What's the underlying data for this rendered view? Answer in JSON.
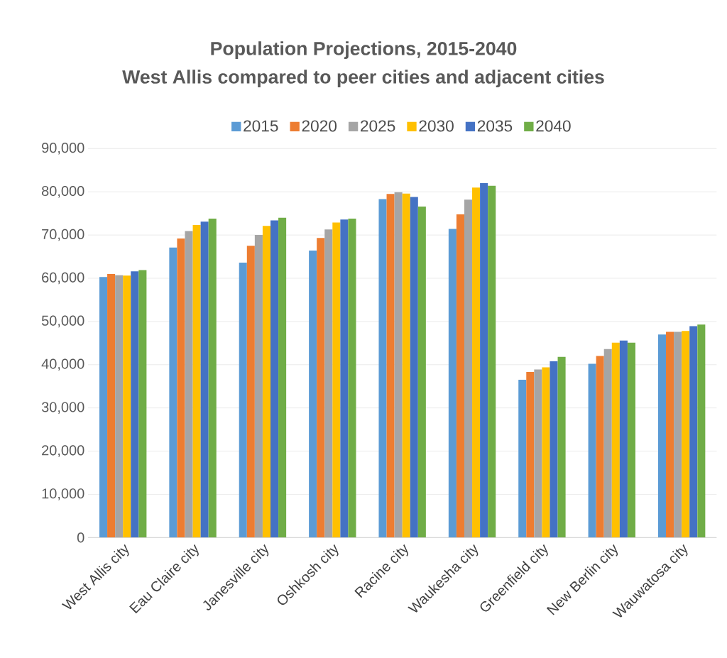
{
  "chart_data": {
    "type": "bar",
    "title": "Population Projections, 2015-2040",
    "subtitle": "West Allis compared to peer cities and adjacent cities",
    "categories": [
      "West Allis city",
      "Eau Claire city",
      "Janesville city",
      "Oshkosh city",
      "Racine city",
      "Waukesha city",
      "Greenfield city",
      "New Berlin city",
      "Wauwatosa city"
    ],
    "series": [
      {
        "name": "2015",
        "color": "#5b9bd5",
        "values": [
          60300,
          67100,
          63600,
          66400,
          78300,
          71400,
          36500,
          40200,
          47000
        ]
      },
      {
        "name": "2020",
        "color": "#ed7d31",
        "values": [
          61000,
          69200,
          67500,
          69300,
          79500,
          74800,
          38300,
          42000,
          47600
        ]
      },
      {
        "name": "2025",
        "color": "#a5a5a5",
        "values": [
          60700,
          70900,
          70000,
          71300,
          79900,
          78200,
          38900,
          43600,
          47600
        ]
      },
      {
        "name": "2030",
        "color": "#ffc000",
        "values": [
          60600,
          72300,
          72100,
          72900,
          79600,
          81000,
          39400,
          45100,
          47800
        ]
      },
      {
        "name": "2035",
        "color": "#4472c4",
        "values": [
          61600,
          73100,
          73400,
          73600,
          78800,
          82000,
          40800,
          45600,
          48900
        ]
      },
      {
        "name": "2040",
        "color": "#70ad47",
        "values": [
          61900,
          73800,
          74000,
          73800,
          76600,
          81400,
          41800,
          45100,
          49300
        ]
      }
    ],
    "ylim": [
      0,
      90000
    ],
    "yticks": [
      {
        "value": 0,
        "label": "0"
      },
      {
        "value": 10000,
        "label": "10,000"
      },
      {
        "value": 20000,
        "label": "20,000"
      },
      {
        "value": 30000,
        "label": "30,000"
      },
      {
        "value": 40000,
        "label": "40,000"
      },
      {
        "value": 50000,
        "label": "50,000"
      },
      {
        "value": 60000,
        "label": "60,000"
      },
      {
        "value": 70000,
        "label": "70,000"
      },
      {
        "value": 80000,
        "label": "80,000"
      },
      {
        "value": 90000,
        "label": "90,000"
      }
    ],
    "grid": "y",
    "legend": "top"
  }
}
